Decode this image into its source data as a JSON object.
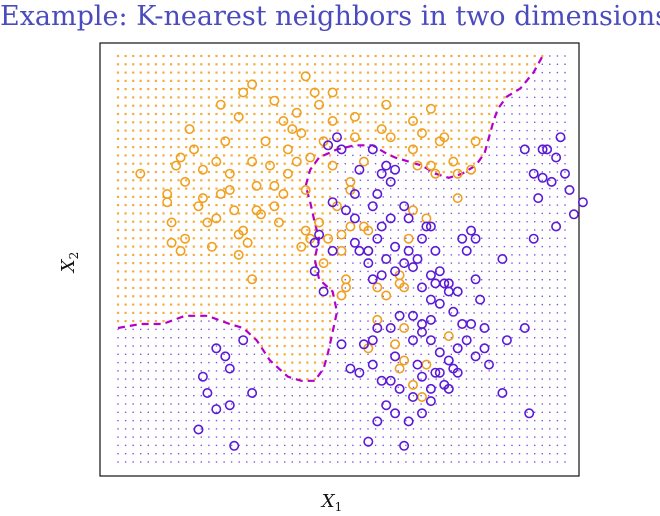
{
  "slide": {
    "title": "Example: K-nearest neighbors in two dimensions"
  },
  "chart_data": {
    "type": "scatter",
    "title": "",
    "xlabel": "X",
    "xlabel_sub": "1",
    "ylabel": "X",
    "ylabel_sub": "2",
    "xlim": [
      0,
      1
    ],
    "ylim": [
      0,
      1
    ],
    "colors": {
      "orange": "#f0a020",
      "blue": "#5a1ad6",
      "boundary": "#b400c8"
    },
    "grid": {
      "nx": 60,
      "ny": 50
    },
    "series": [
      {
        "class": "orange",
        "color": "#f0a020",
        "points": [
          [
            0.05,
            0.71
          ],
          [
            0.11,
            0.66
          ],
          [
            0.11,
            0.64
          ],
          [
            0.12,
            0.59
          ],
          [
            0.12,
            0.54
          ],
          [
            0.13,
            0.73
          ],
          [
            0.14,
            0.75
          ],
          [
            0.14,
            0.52
          ],
          [
            0.15,
            0.55
          ],
          [
            0.16,
            0.82
          ],
          [
            0.17,
            0.77
          ],
          [
            0.19,
            0.72
          ],
          [
            0.19,
            0.65
          ],
          [
            0.2,
            0.59
          ],
          [
            0.21,
            0.53
          ],
          [
            0.22,
            0.74
          ],
          [
            0.23,
            0.66
          ],
          [
            0.23,
            0.88
          ],
          [
            0.24,
            0.79
          ],
          [
            0.25,
            0.71
          ],
          [
            0.26,
            0.62
          ],
          [
            0.27,
            0.56
          ],
          [
            0.27,
            0.51
          ],
          [
            0.28,
            0.57
          ],
          [
            0.29,
            0.54
          ],
          [
            0.3,
            0.45
          ],
          [
            0.3,
            0.74
          ],
          [
            0.31,
            0.68
          ],
          [
            0.32,
            0.61
          ],
          [
            0.28,
            0.91
          ],
          [
            0.3,
            0.93
          ],
          [
            0.33,
            0.79
          ],
          [
            0.34,
            0.73
          ],
          [
            0.35,
            0.63
          ],
          [
            0.35,
            0.68
          ],
          [
            0.36,
            0.59
          ],
          [
            0.37,
            0.66
          ],
          [
            0.38,
            0.71
          ],
          [
            0.38,
            0.77
          ],
          [
            0.39,
            0.82
          ],
          [
            0.4,
            0.86
          ],
          [
            0.41,
            0.81
          ],
          [
            0.41,
            0.53
          ],
          [
            0.42,
            0.67
          ],
          [
            0.43,
            0.75
          ],
          [
            0.44,
            0.91
          ],
          [
            0.45,
            0.88
          ],
          [
            0.45,
            0.59
          ],
          [
            0.46,
            0.49
          ],
          [
            0.47,
            0.55
          ],
          [
            0.46,
            0.79
          ],
          [
            0.48,
            0.73
          ],
          [
            0.48,
            0.84
          ],
          [
            0.49,
            0.63
          ],
          [
            0.5,
            0.41
          ],
          [
            0.5,
            0.52
          ],
          [
            0.51,
            0.45
          ],
          [
            0.52,
            0.69
          ],
          [
            0.53,
            0.8
          ],
          [
            0.53,
            0.85
          ],
          [
            0.52,
            0.58
          ],
          [
            0.55,
            0.74
          ],
          [
            0.55,
            0.58
          ],
          [
            0.5,
            0.56
          ],
          [
            0.51,
            0.43
          ],
          [
            0.52,
            0.67
          ],
          [
            0.56,
            0.52
          ],
          [
            0.58,
            0.43
          ],
          [
            0.6,
            0.88
          ],
          [
            0.61,
            0.8
          ],
          [
            0.58,
            0.35
          ],
          [
            0.56,
            0.28
          ],
          [
            0.62,
            0.29
          ],
          [
            0.63,
            0.23
          ],
          [
            0.64,
            0.25
          ],
          [
            0.66,
            0.84
          ],
          [
            0.66,
            0.77
          ],
          [
            0.67,
            0.73
          ],
          [
            0.7,
            0.73
          ],
          [
            0.71,
            0.71
          ],
          [
            0.63,
            0.46
          ],
          [
            0.64,
            0.43
          ],
          [
            0.65,
            0.55
          ],
          [
            0.7,
            0.87
          ],
          [
            0.72,
            0.79
          ],
          [
            0.75,
            0.74
          ],
          [
            0.73,
            0.8
          ],
          [
            0.76,
            0.65
          ],
          [
            0.76,
            0.71
          ],
          [
            0.79,
            0.72
          ],
          [
            0.68,
            0.81
          ],
          [
            0.8,
            0.79
          ],
          [
            0.74,
            0.31
          ],
          [
            0.66,
            0.19
          ],
          [
            0.68,
            0.16
          ],
          [
            0.69,
            0.24
          ],
          [
            0.66,
            0.62
          ],
          [
            0.69,
            0.6
          ],
          [
            0.63,
            0.44
          ],
          [
            0.59,
            0.82
          ],
          [
            0.6,
            0.41
          ],
          [
            0.64,
            0.33
          ],
          [
            0.56,
            0.57
          ],
          [
            0.42,
            0.57
          ],
          [
            0.4,
            0.74
          ],
          [
            0.43,
            0.55
          ],
          [
            0.31,
            0.62
          ],
          [
            0.27,
            0.85
          ],
          [
            0.35,
            0.89
          ],
          [
            0.25,
            0.67
          ],
          [
            0.22,
            0.6
          ],
          [
            0.48,
            0.91
          ],
          [
            0.42,
            0.95
          ],
          [
            0.37,
            0.84
          ],
          [
            0.18,
            0.63
          ],
          [
            0.15,
            0.69
          ]
        ]
      },
      {
        "class": "blue",
        "color": "#5a1ad6",
        "points": [
          [
            0.47,
            0.78
          ],
          [
            0.49,
            0.8
          ],
          [
            0.53,
            0.66
          ],
          [
            0.54,
            0.72
          ],
          [
            0.5,
            0.77
          ],
          [
            0.57,
            0.77
          ],
          [
            0.59,
            0.71
          ],
          [
            0.6,
            0.73
          ],
          [
            0.58,
            0.66
          ],
          [
            0.61,
            0.69
          ],
          [
            0.62,
            0.72
          ],
          [
            0.64,
            0.63
          ],
          [
            0.65,
            0.6
          ],
          [
            0.57,
            0.63
          ],
          [
            0.59,
            0.58
          ],
          [
            0.61,
            0.6
          ],
          [
            0.56,
            0.52
          ],
          [
            0.58,
            0.55
          ],
          [
            0.6,
            0.5
          ],
          [
            0.62,
            0.47
          ],
          [
            0.64,
            0.49
          ],
          [
            0.53,
            0.54
          ],
          [
            0.54,
            0.52
          ],
          [
            0.56,
            0.49
          ],
          [
            0.57,
            0.45
          ],
          [
            0.59,
            0.46
          ],
          [
            0.62,
            0.53
          ],
          [
            0.65,
            0.52
          ],
          [
            0.66,
            0.48
          ],
          [
            0.67,
            0.5
          ],
          [
            0.68,
            0.55
          ],
          [
            0.69,
            0.58
          ],
          [
            0.7,
            0.58
          ],
          [
            0.71,
            0.52
          ],
          [
            0.72,
            0.47
          ],
          [
            0.73,
            0.44
          ],
          [
            0.71,
            0.44
          ],
          [
            0.7,
            0.4
          ],
          [
            0.72,
            0.39
          ],
          [
            0.75,
            0.37
          ],
          [
            0.76,
            0.42
          ],
          [
            0.74,
            0.42
          ],
          [
            0.68,
            0.43
          ],
          [
            0.7,
            0.46
          ],
          [
            0.78,
            0.52
          ],
          [
            0.8,
            0.45
          ],
          [
            0.81,
            0.4
          ],
          [
            0.77,
            0.34
          ],
          [
            0.79,
            0.34
          ],
          [
            0.78,
            0.3
          ],
          [
            0.8,
            0.26
          ],
          [
            0.74,
            0.25
          ],
          [
            0.75,
            0.23
          ],
          [
            0.76,
            0.28
          ],
          [
            0.72,
            0.27
          ],
          [
            0.7,
            0.3
          ],
          [
            0.7,
            0.35
          ],
          [
            0.68,
            0.34
          ],
          [
            0.66,
            0.36
          ],
          [
            0.63,
            0.36
          ],
          [
            0.61,
            0.33
          ],
          [
            0.58,
            0.33
          ],
          [
            0.57,
            0.3
          ],
          [
            0.62,
            0.26
          ],
          [
            0.66,
            0.3
          ],
          [
            0.67,
            0.24
          ],
          [
            0.68,
            0.21
          ],
          [
            0.7,
            0.18
          ],
          [
            0.7,
            0.15
          ],
          [
            0.71,
            0.22
          ],
          [
            0.73,
            0.19
          ],
          [
            0.72,
            0.22
          ],
          [
            0.74,
            0.18
          ],
          [
            0.76,
            0.22
          ],
          [
            0.68,
            0.12
          ],
          [
            0.66,
            0.16
          ],
          [
            0.63,
            0.18
          ],
          [
            0.6,
            0.14
          ],
          [
            0.58,
            0.1
          ],
          [
            0.56,
            0.05
          ],
          [
            0.55,
            0.29
          ],
          [
            0.5,
            0.29
          ],
          [
            0.52,
            0.23
          ],
          [
            0.54,
            0.22
          ],
          [
            0.57,
            0.24
          ],
          [
            0.59,
            0.2
          ],
          [
            0.61,
            0.2
          ],
          [
            0.62,
            0.12
          ],
          [
            0.64,
            0.04
          ],
          [
            0.65,
            0.1
          ],
          [
            0.68,
            0.32
          ],
          [
            0.74,
            0.44
          ],
          [
            0.77,
            0.55
          ],
          [
            0.79,
            0.57
          ],
          [
            0.8,
            0.55
          ],
          [
            0.82,
            0.33
          ],
          [
            0.83,
            0.24
          ],
          [
            0.86,
            0.5
          ],
          [
            0.87,
            0.3
          ],
          [
            0.86,
            0.17
          ],
          [
            0.91,
            0.33
          ],
          [
            0.92,
            0.12
          ],
          [
            0.93,
            0.55
          ],
          [
            0.94,
            0.65
          ],
          [
            0.95,
            0.7
          ],
          [
            0.97,
            0.69
          ],
          [
            0.98,
            0.58
          ],
          [
            0.91,
            0.77
          ],
          [
            0.93,
            0.71
          ],
          [
            0.95,
            0.77
          ],
          [
            0.98,
            0.75
          ],
          [
            0.96,
            0.77
          ],
          [
            1.0,
            0.71
          ],
          [
            1.02,
            0.61
          ],
          [
            1.04,
            0.64
          ],
          [
            1.01,
            0.67
          ],
          [
            0.99,
            0.8
          ],
          [
            0.22,
            0.28
          ],
          [
            0.24,
            0.26
          ],
          [
            0.25,
            0.23
          ],
          [
            0.28,
            0.3
          ],
          [
            0.19,
            0.21
          ],
          [
            0.2,
            0.17
          ],
          [
            0.22,
            0.13
          ],
          [
            0.18,
            0.08
          ],
          [
            0.25,
            0.14
          ],
          [
            0.3,
            0.17
          ],
          [
            0.26,
            0.04
          ],
          [
            0.48,
            0.64
          ],
          [
            0.51,
            0.62
          ],
          [
            0.53,
            0.6
          ],
          [
            0.44,
            0.54
          ],
          [
            0.45,
            0.56
          ],
          [
            0.44,
            0.47
          ],
          [
            0.46,
            0.42
          ],
          [
            0.48,
            0.52
          ],
          [
            0.82,
            0.28
          ]
        ]
      }
    ],
    "decision_boundary": [
      [
        0.0,
        0.33
      ],
      [
        0.05,
        0.34
      ],
      [
        0.1,
        0.34
      ],
      [
        0.15,
        0.36
      ],
      [
        0.2,
        0.36
      ],
      [
        0.25,
        0.34
      ],
      [
        0.28,
        0.33
      ],
      [
        0.31,
        0.3
      ],
      [
        0.34,
        0.25
      ],
      [
        0.36,
        0.23
      ],
      [
        0.38,
        0.21
      ],
      [
        0.41,
        0.2
      ],
      [
        0.44,
        0.2
      ],
      [
        0.46,
        0.23
      ],
      [
        0.47,
        0.27
      ],
      [
        0.48,
        0.32
      ],
      [
        0.49,
        0.37
      ],
      [
        0.48,
        0.42
      ],
      [
        0.45,
        0.45
      ],
      [
        0.44,
        0.5
      ],
      [
        0.45,
        0.55
      ],
      [
        0.44,
        0.59
      ],
      [
        0.43,
        0.64
      ],
      [
        0.42,
        0.68
      ],
      [
        0.43,
        0.72
      ],
      [
        0.45,
        0.75
      ],
      [
        0.49,
        0.77
      ],
      [
        0.53,
        0.78
      ],
      [
        0.57,
        0.78
      ],
      [
        0.6,
        0.76
      ],
      [
        0.62,
        0.75
      ],
      [
        0.65,
        0.74
      ],
      [
        0.68,
        0.73
      ],
      [
        0.71,
        0.71
      ],
      [
        0.74,
        0.7
      ],
      [
        0.77,
        0.71
      ],
      [
        0.8,
        0.73
      ],
      [
        0.82,
        0.76
      ],
      [
        0.83,
        0.8
      ],
      [
        0.84,
        0.84
      ],
      [
        0.85,
        0.87
      ],
      [
        0.87,
        0.9
      ],
      [
        0.9,
        0.92
      ],
      [
        0.93,
        0.96
      ],
      [
        0.95,
        1.0
      ]
    ]
  }
}
